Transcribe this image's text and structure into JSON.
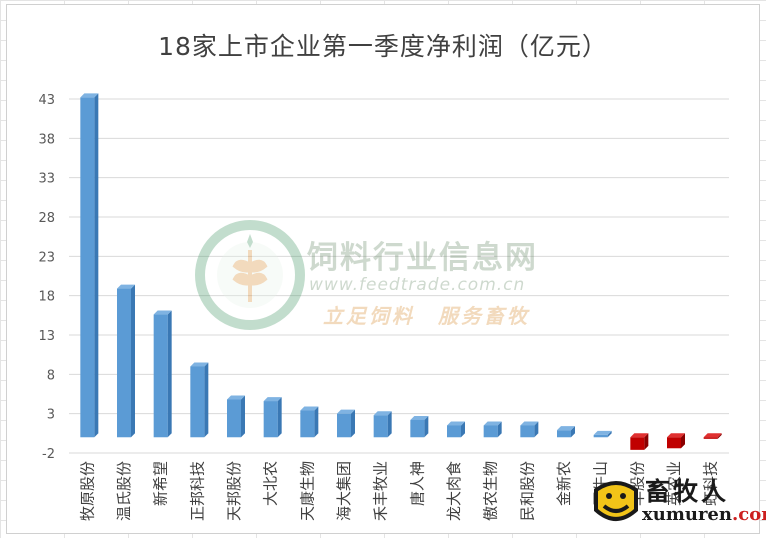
{
  "chart_data": {
    "type": "bar",
    "title": "18家上市企业第一季度净利润（亿元）",
    "categories": [
      "牧原股份",
      "温氏股份",
      "新希望",
      "正邦科技",
      "天邦股份",
      "大北农",
      "天康生物",
      "海大集团",
      "禾丰牧业",
      "唐人神",
      "龙大肉食",
      "傲农生物",
      "民和股份",
      "金新农",
      "罗牛山",
      "华股份",
      "英农业",
      "虹科技"
    ],
    "values": [
      43.2,
      18.9,
      15.6,
      9.0,
      4.8,
      4.6,
      3.4,
      3.0,
      2.8,
      2.2,
      1.5,
      1.5,
      1.5,
      0.9,
      0.3,
      -1.6,
      -1.4,
      -0.2
    ],
    "colors": [
      "#5b9bd5",
      "#5b9bd5",
      "#5b9bd5",
      "#5b9bd5",
      "#5b9bd5",
      "#5b9bd5",
      "#5b9bd5",
      "#5b9bd5",
      "#5b9bd5",
      "#5b9bd5",
      "#5b9bd5",
      "#5b9bd5",
      "#5b9bd5",
      "#5b9bd5",
      "#5b9bd5",
      "#c00000",
      "#c00000",
      "#c00000"
    ],
    "yticks": [
      -2,
      3,
      8,
      13,
      18,
      23,
      28,
      33,
      38,
      43
    ],
    "ylim": [
      -2,
      45
    ],
    "grid": true
  },
  "watermark": {
    "title": "饲料行业信息网",
    "url": "www.feedtrade.com.cn",
    "slogan": "立足饲料　服务畜牧"
  },
  "logo": {
    "name": "畜牧人",
    "domain": "xumuren",
    "tld": ".com"
  }
}
